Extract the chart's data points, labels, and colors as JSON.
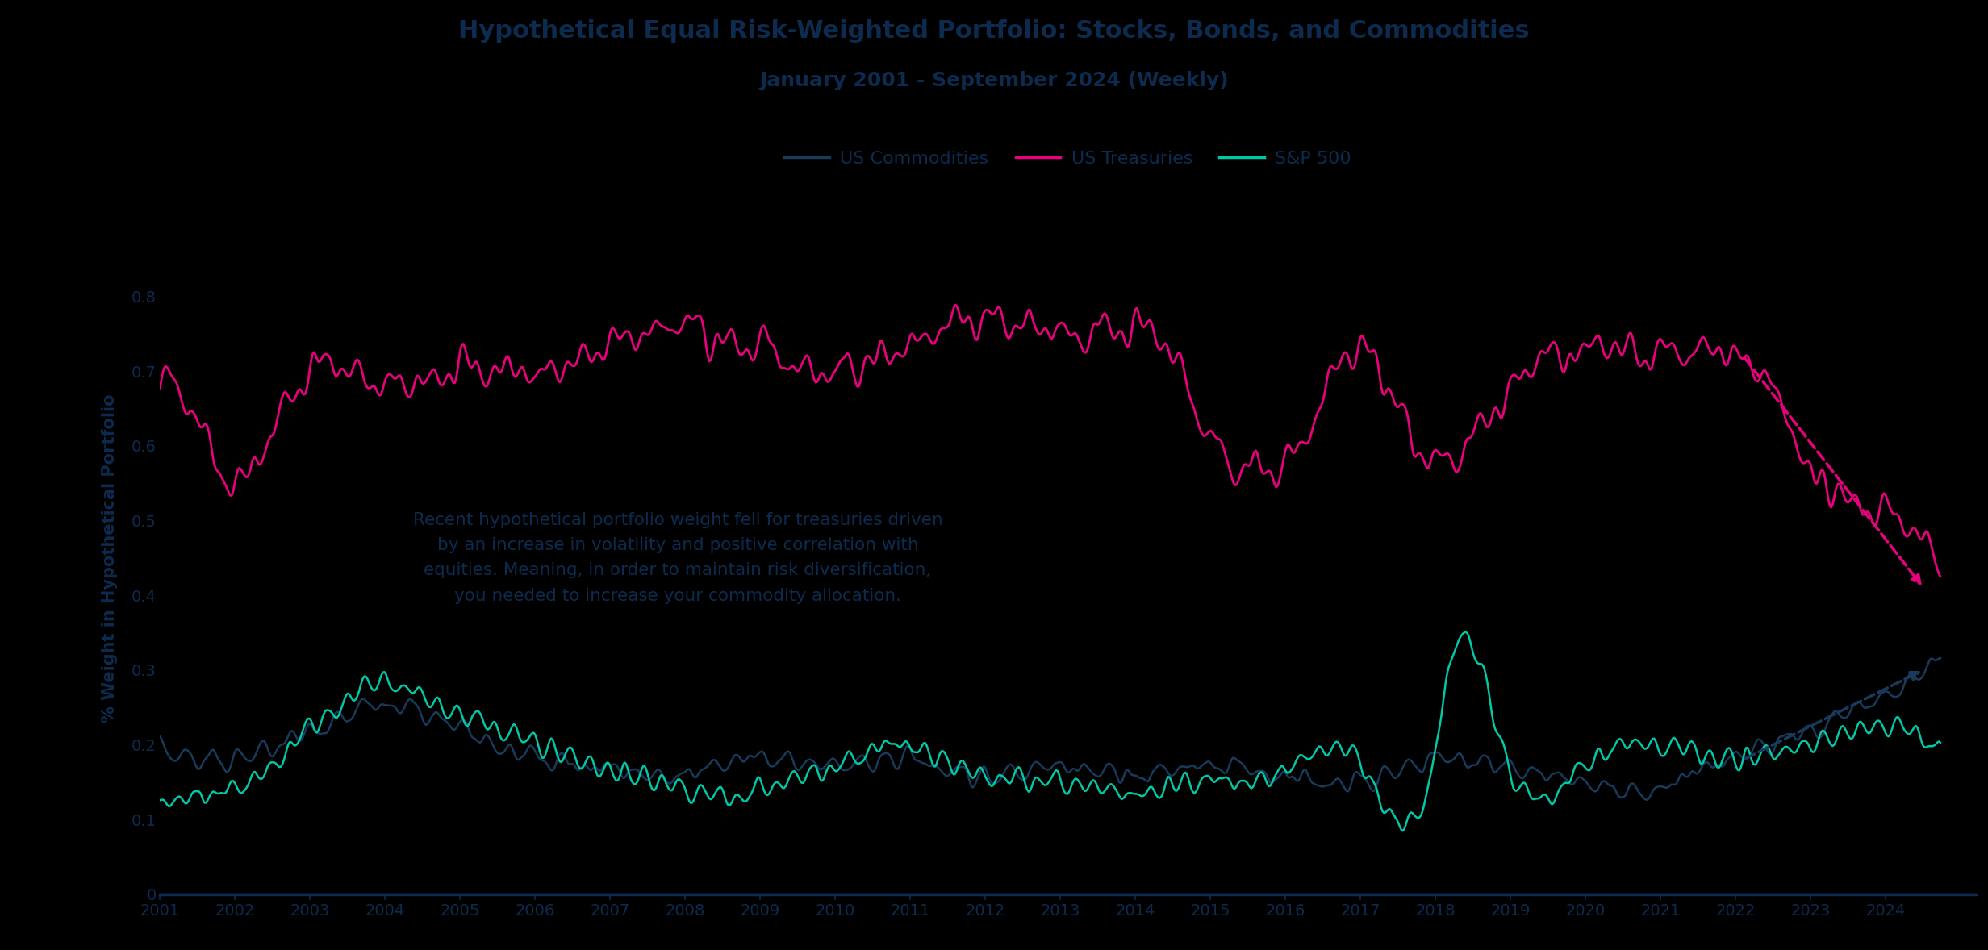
{
  "title": "Hypothetical Equal Risk-Weighted Portfolio: Stocks, Bonds, and Commodities",
  "subtitle": "January 2001 - September 2024 (Weekly)",
  "ylabel": "% Weight in Hypothetical Portfolio",
  "title_color": "#0d2b4e",
  "subtitle_color": "#0d2b4e",
  "ylabel_color": "#0d2b4e",
  "background_color": "#000000",
  "line_colors": {
    "commodities": "#1a3a5c",
    "treasuries": "#e8007d",
    "sp500": "#00c9a7"
  },
  "legend_labels": [
    "US Commodities",
    "US Treasuries",
    "S&P 500"
  ],
  "annotation_text": "Recent hypothetical portfolio weight fell for treasuries driven\nby an increase in volatility and positive correlation with\nequities. Meaning, in order to maintain risk diversification,\nyou needed to increase your commodity allocation.",
  "annotation_color": "#0d2b4e",
  "ylim": [
    0,
    0.9
  ],
  "yticks": [
    0,
    0.1,
    0.2,
    0.3,
    0.4,
    0.5,
    0.6,
    0.7,
    0.8
  ],
  "arrow_color_commodities": "#1a3a5c",
  "arrow_color_treasuries": "#e8007d"
}
